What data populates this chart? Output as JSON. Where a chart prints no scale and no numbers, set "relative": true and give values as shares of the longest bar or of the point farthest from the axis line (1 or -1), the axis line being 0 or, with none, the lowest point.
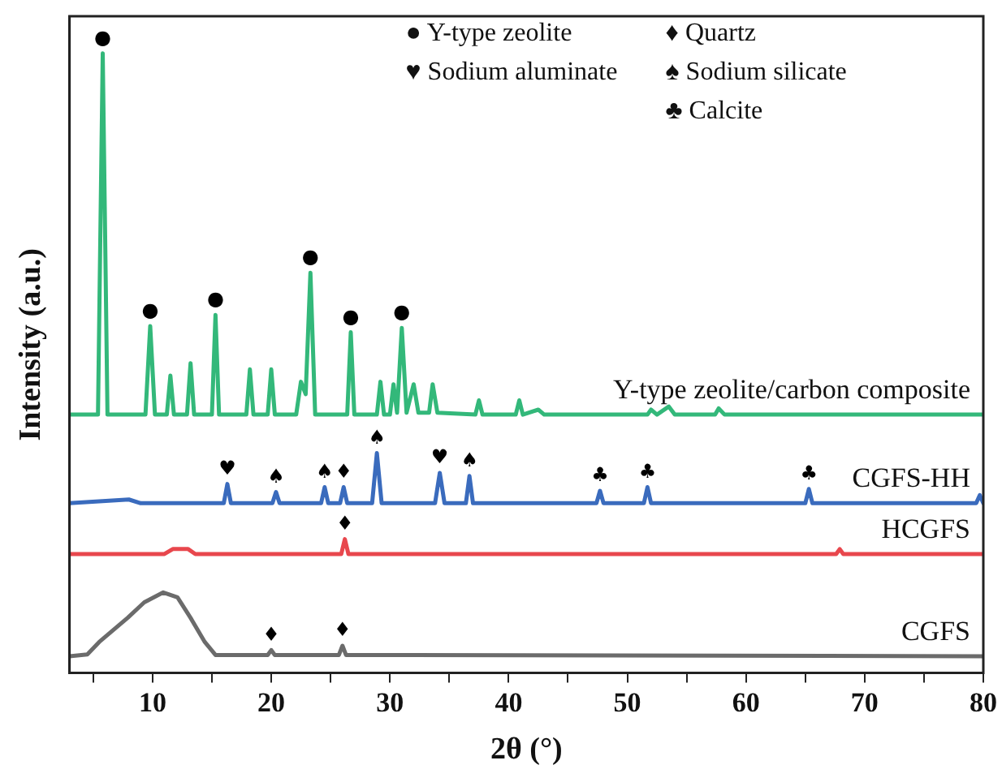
{
  "chart_data": {
    "type": "line",
    "relative": true,
    "xlabel": "2θ (°)",
    "ylabel": "Intensity (a.u.)",
    "xlim": [
      3,
      80
    ],
    "xticks": [
      {
        "value": 5,
        "label": null
      },
      10,
      {
        "value": 15,
        "label": null
      },
      20,
      {
        "value": 25,
        "label": null
      },
      30,
      {
        "value": 35,
        "label": null
      },
      40,
      {
        "value": 45,
        "label": null
      },
      50,
      {
        "value": 55,
        "label": null
      },
      60,
      {
        "value": 65,
        "label": null
      },
      70,
      {
        "value": 75,
        "label": null
      },
      80
    ],
    "legend": false,
    "marker": "none",
    "line_style": "solid",
    "series": [
      {
        "name": "Y-type zeolite/carbon composite",
        "color": "#33b87a",
        "x": [
          3,
          5.4,
          5.8,
          6.2,
          9.4,
          9.8,
          10.2,
          11.2,
          11.5,
          11.8,
          12.9,
          13.2,
          13.5,
          15.0,
          15.3,
          15.6,
          17.9,
          18.2,
          18.5,
          19.7,
          20.0,
          20.3,
          22.1,
          22.5,
          22.9,
          23.3,
          23.7,
          26.4,
          26.7,
          27.0,
          28.9,
          29.2,
          29.5,
          30.0,
          30.3,
          30.6,
          31.0,
          31.4,
          32.0,
          32.4,
          33.3,
          33.6,
          34.0,
          37.2,
          37.5,
          37.8,
          40.6,
          40.9,
          41.2,
          42.5,
          43,
          51.7,
          52,
          52.5,
          53.5,
          54,
          57.4,
          57.7,
          58.2,
          80
        ],
        "values": [
          0.417,
          0.417,
          1.0,
          0.417,
          0.417,
          0.56,
          0.417,
          0.417,
          0.48,
          0.417,
          0.417,
          0.5,
          0.417,
          0.417,
          0.578,
          0.417,
          0.417,
          0.49,
          0.417,
          0.417,
          0.49,
          0.417,
          0.417,
          0.47,
          0.45,
          0.646,
          0.417,
          0.417,
          0.55,
          0.417,
          0.417,
          0.47,
          0.417,
          0.417,
          0.466,
          0.42,
          0.557,
          0.42,
          0.466,
          0.42,
          0.42,
          0.466,
          0.42,
          0.417,
          0.44,
          0.417,
          0.417,
          0.44,
          0.417,
          0.425,
          0.417,
          0.417,
          0.425,
          0.417,
          0.43,
          0.417,
          0.417,
          0.427,
          0.417,
          0.417
        ]
      },
      {
        "name": "CGFS-HH",
        "color": "#3a6bbd",
        "x": [
          3,
          8,
          9,
          16.0,
          16.3,
          16.6,
          20.1,
          20.4,
          20.7,
          24.2,
          24.5,
          24.8,
          25.8,
          26.1,
          26.4,
          28.5,
          28.9,
          29.3,
          33.8,
          34.2,
          34.6,
          36.4,
          36.7,
          37.0,
          47.4,
          47.7,
          48.0,
          51.4,
          51.7,
          52.0,
          65.0,
          65.3,
          65.6,
          79.4,
          79.7,
          80
        ],
        "values": [
          0.274,
          0.28,
          0.274,
          0.274,
          0.305,
          0.274,
          0.274,
          0.292,
          0.274,
          0.274,
          0.3,
          0.274,
          0.274,
          0.3,
          0.274,
          0.274,
          0.355,
          0.274,
          0.274,
          0.323,
          0.274,
          0.274,
          0.318,
          0.274,
          0.274,
          0.294,
          0.274,
          0.274,
          0.3,
          0.274,
          0.274,
          0.297,
          0.274,
          0.274,
          0.287,
          0.274
        ]
      },
      {
        "name": "HCGFS",
        "color": "#e8474d",
        "x": [
          3,
          11,
          11.7,
          13,
          13.6,
          25.9,
          26.2,
          26.5,
          67.6,
          67.9,
          68.2,
          80
        ],
        "values": [
          0.192,
          0.192,
          0.2,
          0.2,
          0.192,
          0.192,
          0.216,
          0.192,
          0.192,
          0.2,
          0.192,
          0.192
        ]
      },
      {
        "name": "CGFS",
        "color": "#6b6b6b",
        "x": [
          3,
          4.5,
          5.5,
          7.9,
          9.3,
          10.9,
          12.1,
          13.2,
          14.4,
          15.3,
          19.7,
          20.0,
          20.3,
          25.7,
          26.0,
          26.3,
          80
        ],
        "values": [
          0.027,
          0.03,
          0.05,
          0.089,
          0.114,
          0.13,
          0.122,
          0.089,
          0.05,
          0.029,
          0.029,
          0.037,
          0.029,
          0.029,
          0.044,
          0.029,
          0.027
        ]
      }
    ],
    "annotations": [
      "● Y-type zeolite",
      "♥ Sodium aluminate",
      "♦ Quartz",
      "♠ Sodium silicate",
      "♣ Calcite",
      {
        "text": "●",
        "x": 5.8,
        "y": 1.0
      },
      {
        "text": "●",
        "x": 9.8,
        "y": 0.56
      },
      {
        "text": "●",
        "x": 15.3,
        "y": 0.578
      },
      {
        "text": "●",
        "x": 23.3,
        "y": 0.646
      },
      {
        "text": "●",
        "x": 26.7,
        "y": 0.55
      },
      {
        "text": "●",
        "x": 31.0,
        "y": 0.557
      },
      {
        "text": "♥",
        "x": 16.3,
        "y": 0.305
      },
      {
        "text": "♥",
        "x": 34.2,
        "y": 0.323
      },
      {
        "text": "♠",
        "x": 20.4,
        "y": 0.292
      },
      {
        "text": "♠",
        "x": 24.5,
        "y": 0.3
      },
      {
        "text": "♠",
        "x": 28.9,
        "y": 0.355
      },
      {
        "text": "♠",
        "x": 36.7,
        "y": 0.318
      },
      {
        "text": "♦",
        "x": 26.1,
        "y": 0.3
      },
      {
        "text": "♦",
        "x": 26.2,
        "y": 0.216
      },
      {
        "text": "♦",
        "x": 20.0,
        "y": 0.037
      },
      {
        "text": "♦",
        "x": 26.0,
        "y": 0.044
      },
      {
        "text": "♣",
        "x": 47.7,
        "y": 0.294
      },
      {
        "text": "♣",
        "x": 51.7,
        "y": 0.3
      },
      {
        "text": "♣",
        "x": 65.3,
        "y": 0.297
      }
    ]
  }
}
